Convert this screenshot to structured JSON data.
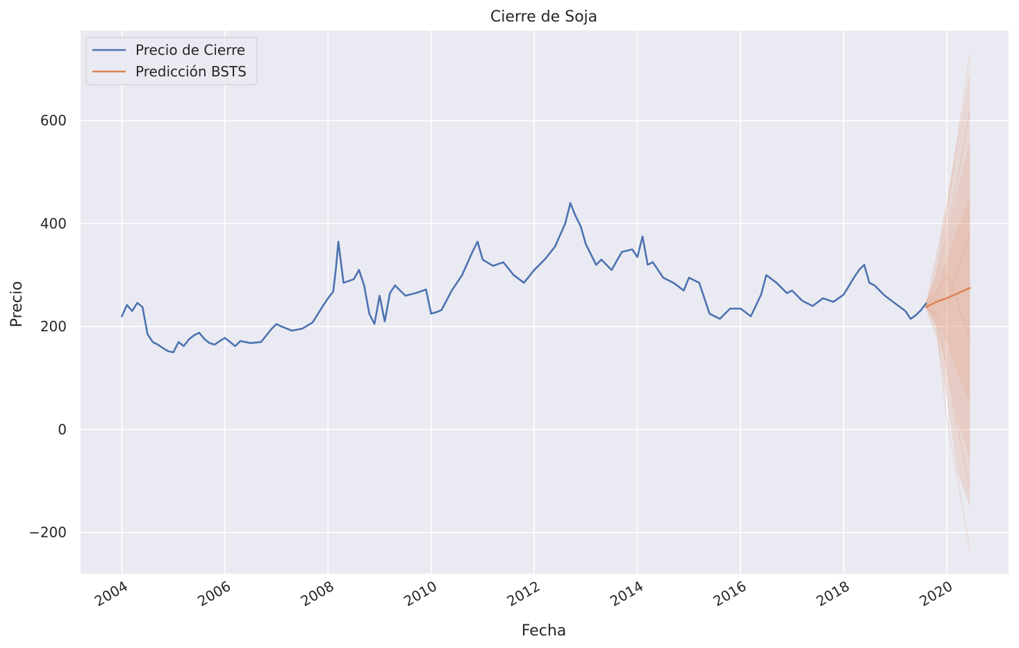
{
  "chart_data": {
    "type": "line",
    "title": "Cierre de Soja",
    "xlabel": "Fecha",
    "ylabel": "Precio",
    "xlim": [
      2003.2,
      2021.2
    ],
    "ylim": [
      -280,
      775
    ],
    "x_ticks": [
      2004,
      2006,
      2008,
      2010,
      2012,
      2014,
      2016,
      2018,
      2020
    ],
    "x_tick_labels": [
      "2004",
      "2006",
      "2008",
      "2010",
      "2012",
      "2014",
      "2016",
      "2018",
      "2020"
    ],
    "y_ticks": [
      -200,
      0,
      200,
      400,
      600
    ],
    "y_tick_labels": [
      "−200",
      "0",
      "200",
      "400",
      "600"
    ],
    "grid": true,
    "legend_position": "top-left",
    "colors": {
      "background": "#eaeaf2",
      "grid": "#ffffff",
      "text": "#262626",
      "series_close": "#4c72b0",
      "series_bsts": "#dd8452"
    },
    "series": [
      {
        "name": "Precio de Cierre",
        "color": "#4c72b0",
        "x": [
          2004.0,
          2004.1,
          2004.2,
          2004.3,
          2004.4,
          2004.5,
          2004.6,
          2004.7,
          2004.8,
          2004.9,
          2005.0,
          2005.1,
          2005.2,
          2005.3,
          2005.4,
          2005.5,
          2005.6,
          2005.7,
          2005.8,
          2005.9,
          2006.0,
          2006.1,
          2006.2,
          2006.3,
          2006.5,
          2006.7,
          2006.9,
          2007.0,
          2007.1,
          2007.3,
          2007.5,
          2007.7,
          2007.9,
          2008.0,
          2008.1,
          2008.15,
          2008.2,
          2008.3,
          2008.5,
          2008.6,
          2008.7,
          2008.8,
          2008.9,
          2009.0,
          2009.1,
          2009.2,
          2009.3,
          2009.5,
          2009.7,
          2009.9,
          2010.0,
          2010.1,
          2010.2,
          2010.4,
          2010.6,
          2010.8,
          2010.9,
          2011.0,
          2011.2,
          2011.4,
          2011.6,
          2011.8,
          2012.0,
          2012.2,
          2012.4,
          2012.6,
          2012.7,
          2012.8,
          2012.9,
          2013.0,
          2013.2,
          2013.3,
          2013.5,
          2013.7,
          2013.9,
          2014.0,
          2014.1,
          2014.2,
          2014.3,
          2014.5,
          2014.7,
          2014.9,
          2015.0,
          2015.2,
          2015.4,
          2015.6,
          2015.8,
          2016.0,
          2016.2,
          2016.4,
          2016.5,
          2016.7,
          2016.9,
          2017.0,
          2017.2,
          2017.4,
          2017.6,
          2017.8,
          2018.0,
          2018.2,
          2018.3,
          2018.4,
          2018.5,
          2018.6,
          2018.8,
          2019.0,
          2019.2,
          2019.3,
          2019.4,
          2019.5,
          2019.6
        ],
        "y": [
          220,
          242,
          230,
          246,
          238,
          185,
          170,
          165,
          158,
          152,
          150,
          170,
          162,
          175,
          183,
          188,
          176,
          168,
          165,
          172,
          178,
          170,
          162,
          172,
          168,
          170,
          195,
          205,
          200,
          192,
          196,
          208,
          240,
          255,
          268,
          310,
          365,
          285,
          292,
          310,
          280,
          225,
          205,
          260,
          210,
          265,
          280,
          260,
          265,
          272,
          225,
          228,
          232,
          270,
          300,
          345,
          365,
          330,
          318,
          325,
          300,
          285,
          310,
          330,
          355,
          400,
          440,
          415,
          395,
          360,
          320,
          330,
          310,
          345,
          350,
          335,
          375,
          320,
          325,
          295,
          285,
          270,
          295,
          285,
          225,
          215,
          235,
          235,
          220,
          262,
          300,
          285,
          265,
          270,
          250,
          240,
          255,
          248,
          262,
          295,
          310,
          320,
          285,
          280,
          260,
          245,
          230,
          215,
          222,
          232,
          245
        ]
      },
      {
        "name": "Predicción BSTS",
        "color": "#dd8452",
        "x": [
          2019.6,
          2019.8,
          2020.0,
          2020.2,
          2020.45
        ],
        "y": [
          238,
          248,
          255,
          264,
          275
        ]
      }
    ],
    "interval": {
      "x": [
        2019.6,
        2019.8,
        2020.0,
        2020.2,
        2020.45
      ],
      "lower": [
        232,
        180,
        60,
        -80,
        -150
      ],
      "upper": [
        250,
        340,
        445,
        560,
        700
      ]
    },
    "bands": [
      {
        "x": [
          2019.6,
          2019.8,
          2020.0,
          2020.2,
          2020.45
        ],
        "lower": [
          234,
          200,
          120,
          20,
          -60
        ],
        "upper": [
          248,
          300,
          380,
          460,
          560
        ]
      },
      {
        "x": [
          2019.6,
          2019.8,
          2020.0,
          2020.2,
          2020.45
        ],
        "lower": [
          236,
          215,
          170,
          110,
          50
        ],
        "upper": [
          246,
          275,
          330,
          390,
          450
        ]
      }
    ],
    "faint_paths": [
      {
        "x": [
          2019.6,
          2019.8,
          2020.0,
          2020.2,
          2020.45
        ],
        "y": [
          240,
          210,
          20,
          -90,
          -235
        ]
      },
      {
        "x": [
          2019.6,
          2019.8,
          2020.0,
          2020.2,
          2020.45
        ],
        "y": [
          242,
          300,
          420,
          560,
          730
        ]
      },
      {
        "x": [
          2019.6,
          2019.8,
          2020.0,
          2020.2,
          2020.45
        ],
        "y": [
          238,
          220,
          120,
          10,
          -110
        ]
      },
      {
        "x": [
          2019.6,
          2019.8,
          2020.0,
          2020.2,
          2020.45
        ],
        "y": [
          244,
          285,
          390,
          480,
          620
        ]
      },
      {
        "x": [
          2019.6,
          2019.8,
          2020.0,
          2020.2,
          2020.45
        ],
        "y": [
          239,
          265,
          300,
          250,
          180
        ]
      },
      {
        "x": [
          2019.6,
          2019.8,
          2020.0,
          2020.2,
          2020.45
        ],
        "y": [
          241,
          255,
          235,
          310,
          380
        ]
      }
    ]
  }
}
